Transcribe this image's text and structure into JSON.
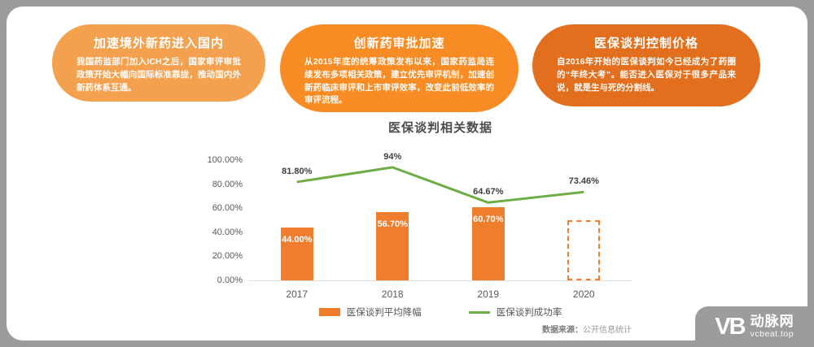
{
  "cards": [
    {
      "title": "加速境外新药进入国内",
      "body": "我国药监部门加入ICH之后，国家审评审批政策开始大幅向国际标准靠拢，推动国内外新药体系互通。",
      "bg": "#F4A14F"
    },
    {
      "title": "创新药审批加速",
      "body": "从2015年底的统筹政策发布以来，国家药监局连续发布多项相关政策，建立优先审评机制，加速创新药临床审评和上市审评效率，改变此前低效率的审评流程。",
      "bg": "#F78C24"
    },
    {
      "title": "医保谈判控制价格",
      "body": "自2016年开始的医保谈判如今已经成为了药圈的“年终大考”。能否进入医保对于很多产品来说，就是生与死的分割线。",
      "bg": "#E26F1D"
    }
  ],
  "chart_data": {
    "type": "bar",
    "title": "医保谈判相关数据",
    "categories": [
      "2017",
      "2018",
      "2019",
      "2020"
    ],
    "series": [
      {
        "name": "医保谈判平均降幅",
        "type": "bar",
        "values": [
          44.0,
          56.7,
          60.7,
          50.0
        ],
        "labels": [
          "44.00%",
          "56.70%",
          "60.70%",
          ""
        ],
        "dashed": [
          false,
          false,
          false,
          true
        ],
        "color": "#EE7D2E"
      },
      {
        "name": "医保谈判成功率",
        "type": "line",
        "values": [
          81.8,
          94.0,
          64.67,
          73.46
        ],
        "labels": [
          "81.80%",
          "94%",
          "64.67%",
          "73.46%"
        ],
        "color": "#6FAD47"
      }
    ],
    "ylim": [
      0,
      100
    ],
    "y_ticks": [
      "100.00%",
      "80.00%",
      "60.00%",
      "40.00%",
      "20.00%",
      "0.00%"
    ],
    "grid": false,
    "legend_position": "bottom"
  },
  "source": {
    "prefix": "数据来源：",
    "text": "公开信息统计"
  },
  "logo": {
    "mark": "VB",
    "name": "动脉网",
    "site": "vcbeat.top"
  }
}
